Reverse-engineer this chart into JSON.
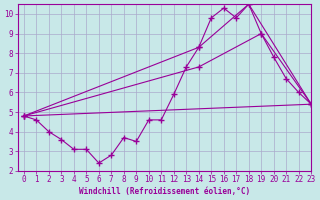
{
  "line1_x": [
    0,
    1,
    2,
    3,
    4,
    5,
    6,
    7,
    8,
    9,
    10,
    11,
    12,
    13,
    14,
    15,
    16,
    17,
    18,
    19,
    20,
    21,
    22,
    23
  ],
  "line1_y": [
    4.8,
    4.6,
    4.0,
    3.6,
    3.1,
    3.1,
    2.4,
    2.8,
    3.7,
    3.5,
    4.6,
    4.6,
    5.9,
    7.3,
    8.3,
    9.8,
    10.3,
    9.8,
    10.5,
    9.0,
    7.8,
    6.7,
    6.0,
    5.4
  ],
  "line2_x": [
    0,
    14,
    18,
    23
  ],
  "line2_y": [
    4.8,
    8.3,
    10.5,
    5.4
  ],
  "line3_x": [
    0,
    14,
    19,
    23
  ],
  "line3_y": [
    4.8,
    7.3,
    9.0,
    5.4
  ],
  "line4_x": [
    0,
    23
  ],
  "line4_y": [
    4.8,
    5.4
  ],
  "color": "#990099",
  "bg_color": "#c8e8e8",
  "grid_color": "#aaaacc",
  "xlabel": "Windchill (Refroidissement éolien,°C)",
  "xlim": [
    -0.5,
    23
  ],
  "ylim": [
    2,
    10.5
  ],
  "yticks": [
    2,
    3,
    4,
    5,
    6,
    7,
    8,
    9,
    10
  ],
  "xticks": [
    0,
    1,
    2,
    3,
    4,
    5,
    6,
    7,
    8,
    9,
    10,
    11,
    12,
    13,
    14,
    15,
    16,
    17,
    18,
    19,
    20,
    21,
    22,
    23
  ],
  "figsize": [
    3.2,
    2.0
  ],
  "dpi": 100
}
